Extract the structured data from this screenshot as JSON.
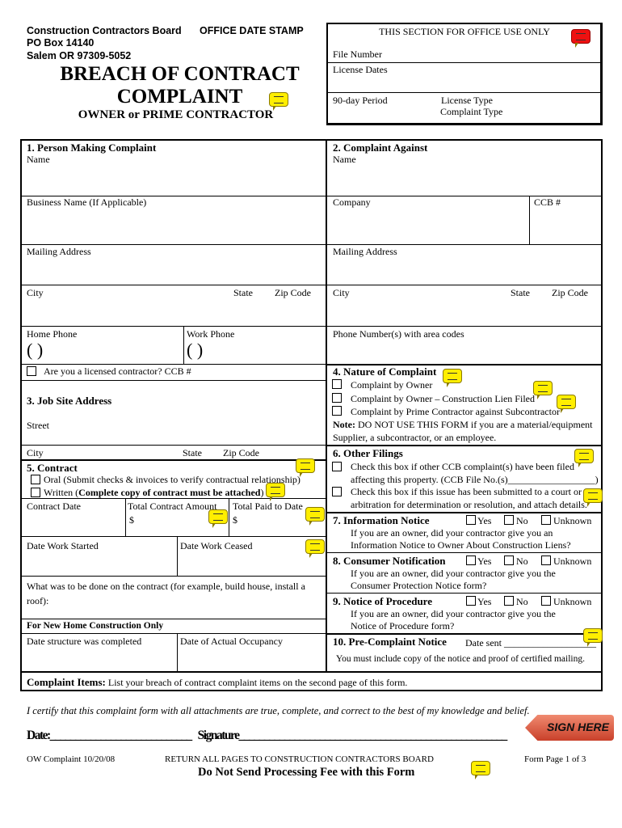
{
  "header": {
    "org": "Construction Contractors Board",
    "stamp": "OFFICE DATE STAMP",
    "po": "PO Box 14140",
    "city": "Salem  OR  97309-5052",
    "title1": "BREACH OF CONTRACT",
    "title2": "COMPLAINT",
    "subtitle": "OWNER or PRIME CONTRACTOR"
  },
  "office": {
    "heading": "THIS SECTION FOR OFFICE USE ONLY",
    "file_number": "File Number",
    "license_dates": "License Dates",
    "period": "90-day Period",
    "license_type": "License Type",
    "complaint_type": "Complaint Type"
  },
  "s1": {
    "title": "1.   Person Making Complaint",
    "name": "Name",
    "business": "Business Name (If Applicable)",
    "mailing": "Mailing Address",
    "city": "City",
    "state": "State",
    "zip": "Zip Code",
    "home_phone": "Home Phone",
    "work_phone": "Work Phone",
    "paren": "(    )",
    "licensed": "Are you a licensed contractor?  CCB #"
  },
  "s2": {
    "title": "2.   Complaint Against",
    "name": "Name",
    "company": "Company",
    "ccb": "CCB #",
    "mailing": "Mailing Address",
    "city": "City",
    "state": "State",
    "zip": "Zip Code",
    "phone": "Phone Number(s) with area codes"
  },
  "s3": {
    "title": "3.   Job Site Address",
    "street": "Street",
    "city": "City",
    "state": "State",
    "zip": "Zip Code"
  },
  "s4": {
    "title": "4.   Nature of Complaint",
    "options": [
      "Complaint by Owner",
      "Complaint by Owner – Construction Lien Filed",
      "Complaint by Prime Contractor against Subcontractor"
    ],
    "note_label": "Note:",
    "note1": " DO NOT USE THIS FORM if you are a material/equipment",
    "note2": "Supplier, a subcontractor, or an employee."
  },
  "s5": {
    "title": "5.   Contract",
    "oral": "Oral (Submit checks & invoices to verify contractual relationship)",
    "written": "Written (",
    "written_bold": "Complete copy of contract must be attached",
    "written_end": ")",
    "date": "Contract Date",
    "total": "Total Contract Amount",
    "paid": "Total Paid to Date",
    "dollar": "$",
    "started": "Date Work Started",
    "ceased": "Date Work Ceased",
    "what1": "What was to be done on the contract (for example, build house, install a",
    "what2": "roof):",
    "new_home": "For New Home Construction Only",
    "completed": "Date structure was completed",
    "occupancy": "Date of Actual Occupancy"
  },
  "s6": {
    "title": "6.   Other Filings",
    "opt1a": "Check this box if other CCB complaint(s) have been filed",
    "opt1b": "affecting this property. (CCB File No.(s)__________________)",
    "opt2a": "Check this box if this issue has been submitted to a court or",
    "opt2b": "arbitration for determination or resolution, and attach details."
  },
  "yesno": {
    "yes": "Yes",
    "no": "No",
    "unknown": "Unknown"
  },
  "s7": {
    "title": "7.   Information Notice",
    "q1": "If you are an owner, did your contractor give you an",
    "q2": "Information Notice to Owner About Construction Liens?"
  },
  "s8": {
    "title": "8.   Consumer Notification",
    "q1": "If you are an owner, did your contractor give you the",
    "q2": "Consumer Protection Notice form?"
  },
  "s9": {
    "title": "9.   Notice of Procedure",
    "q1": "If you are an owner, did your contractor give you the",
    "q2": "Notice of Procedure form?"
  },
  "s10": {
    "title": "10. Pre-Complaint Notice",
    "date_sent": "Date sent ___________________",
    "note": "You must include copy of the notice and proof of certified mailing."
  },
  "items": {
    "label": "Complaint Items:",
    "text": "  List your breach of contract complaint items on the second page of this form."
  },
  "certify": "I certify that this complaint form with all attachments are true, complete, and correct to the best of my knowledge and belief.",
  "sign": {
    "date": "Date:____________________________",
    "signature": "Signature_____________________________________________________",
    "sign_here": "SIGN HERE"
  },
  "footer": {
    "code": "OW Complaint 10/20/08",
    "return": "RETURN ALL PAGES TO CONSTRUCTION CONTRACTORS BOARD",
    "page": "Form Page 1 of 3",
    "fee": "Do Not Send Processing Fee with this Form"
  },
  "colors": {
    "note": "#ffee00",
    "note_alert": "#ee1111",
    "sign_here": "#d9533f"
  }
}
